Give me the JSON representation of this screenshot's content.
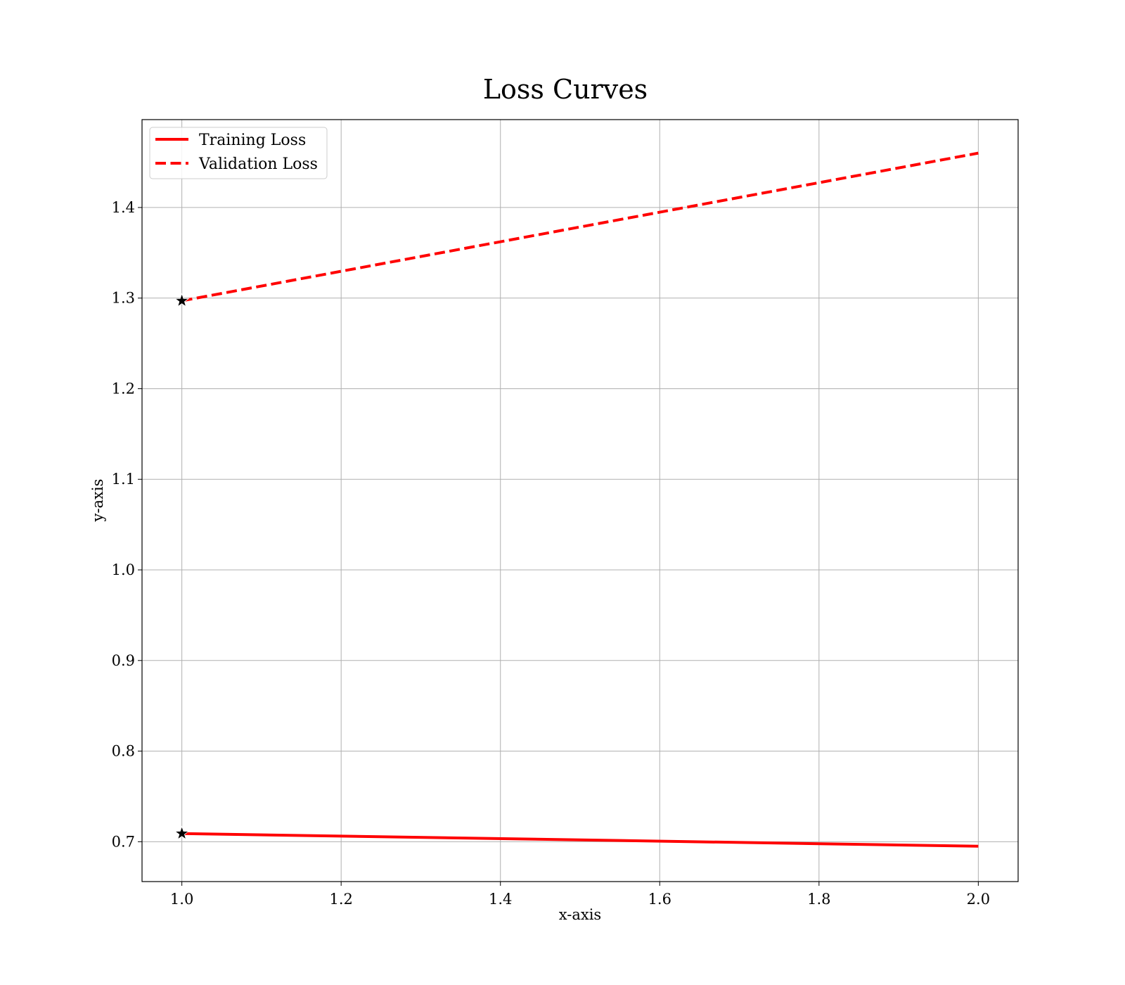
{
  "chart_data": {
    "type": "line",
    "title": "Loss Curves",
    "xlabel": "x-axis",
    "ylabel": "y-axis",
    "xlim": [
      0.95,
      2.05
    ],
    "ylim": [
      0.656,
      1.497
    ],
    "xticks": [
      "1.0",
      "1.2",
      "1.4",
      "1.6",
      "1.8",
      "2.0"
    ],
    "yticks": [
      "0.7",
      "0.8",
      "0.9",
      "1.0",
      "1.1",
      "1.2",
      "1.3",
      "1.4"
    ],
    "grid": true,
    "legend_position": "top-left",
    "series": [
      {
        "name": "Training Loss",
        "style": "solid",
        "color": "#ff0000",
        "x": [
          1.0,
          2.0
        ],
        "y": [
          0.709,
          0.695
        ],
        "marker": {
          "shape": "star",
          "x": 1.0,
          "y": 0.709,
          "color": "#000000"
        }
      },
      {
        "name": "Validation Loss",
        "style": "dashed",
        "color": "#ff0000",
        "x": [
          1.0,
          2.0
        ],
        "y": [
          1.297,
          1.46
        ],
        "marker": {
          "shape": "star",
          "x": 1.0,
          "y": 1.297,
          "color": "#000000"
        }
      }
    ]
  }
}
